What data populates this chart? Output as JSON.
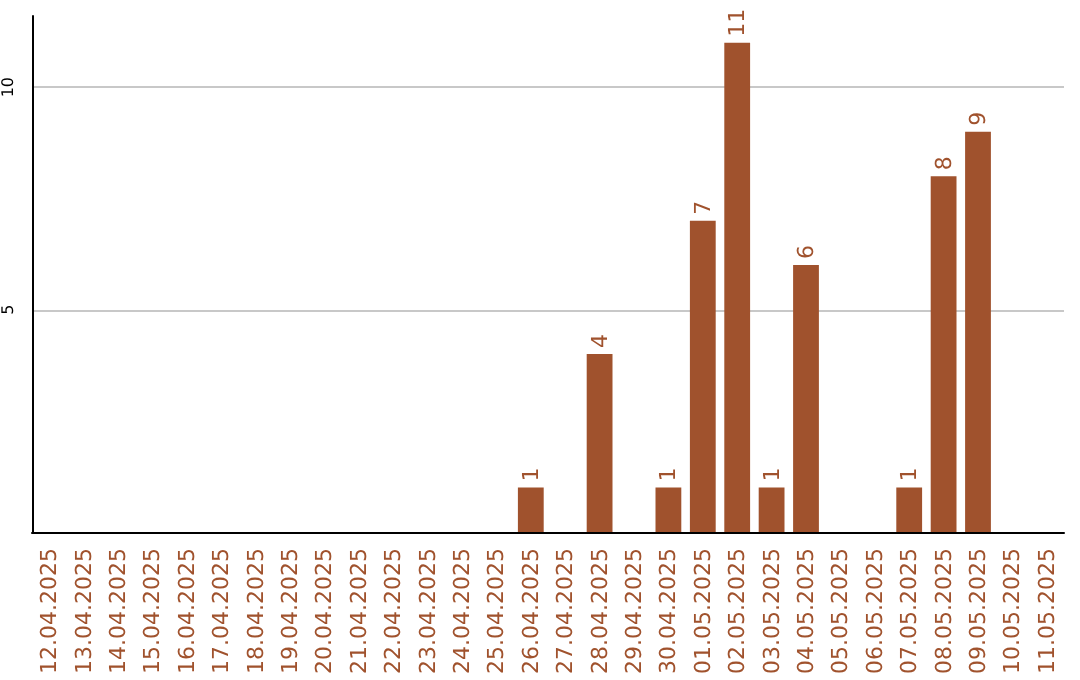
{
  "chart_data": {
    "type": "bar",
    "categories": [
      "12.04.2025",
      "13.04.2025",
      "14.04.2025",
      "15.04.2025",
      "16.04.2025",
      "17.04.2025",
      "18.04.2025",
      "19.04.2025",
      "20.04.2025",
      "21.04.2025",
      "22.04.2025",
      "23.04.2025",
      "24.04.2025",
      "25.04.2025",
      "26.04.2025",
      "27.04.2025",
      "28.04.2025",
      "29.04.2025",
      "30.04.2025",
      "01.05.2025",
      "02.05.2025",
      "03.05.2025",
      "04.05.2025",
      "05.05.2025",
      "06.05.2025",
      "07.05.2025",
      "08.05.2025",
      "09.05.2025",
      "10.05.2025",
      "11.05.2025"
    ],
    "values": [
      0,
      0,
      0,
      0,
      0,
      0,
      0,
      0,
      0,
      0,
      0,
      0,
      0,
      0,
      1,
      0,
      4,
      0,
      1,
      7,
      11,
      1,
      6,
      0,
      0,
      1,
      8,
      9,
      0,
      0
    ],
    "value_labels": [
      null,
      null,
      null,
      null,
      null,
      null,
      null,
      null,
      null,
      null,
      null,
      null,
      null,
      null,
      "1",
      null,
      "4",
      null,
      "1",
      "7",
      "11",
      "1",
      "6",
      null,
      null,
      "1",
      "8",
      "9",
      null,
      null
    ],
    "color": "#a0522d",
    "ylim": [
      0,
      11.6
    ],
    "yticks": [
      5,
      10
    ],
    "grid": "y"
  }
}
